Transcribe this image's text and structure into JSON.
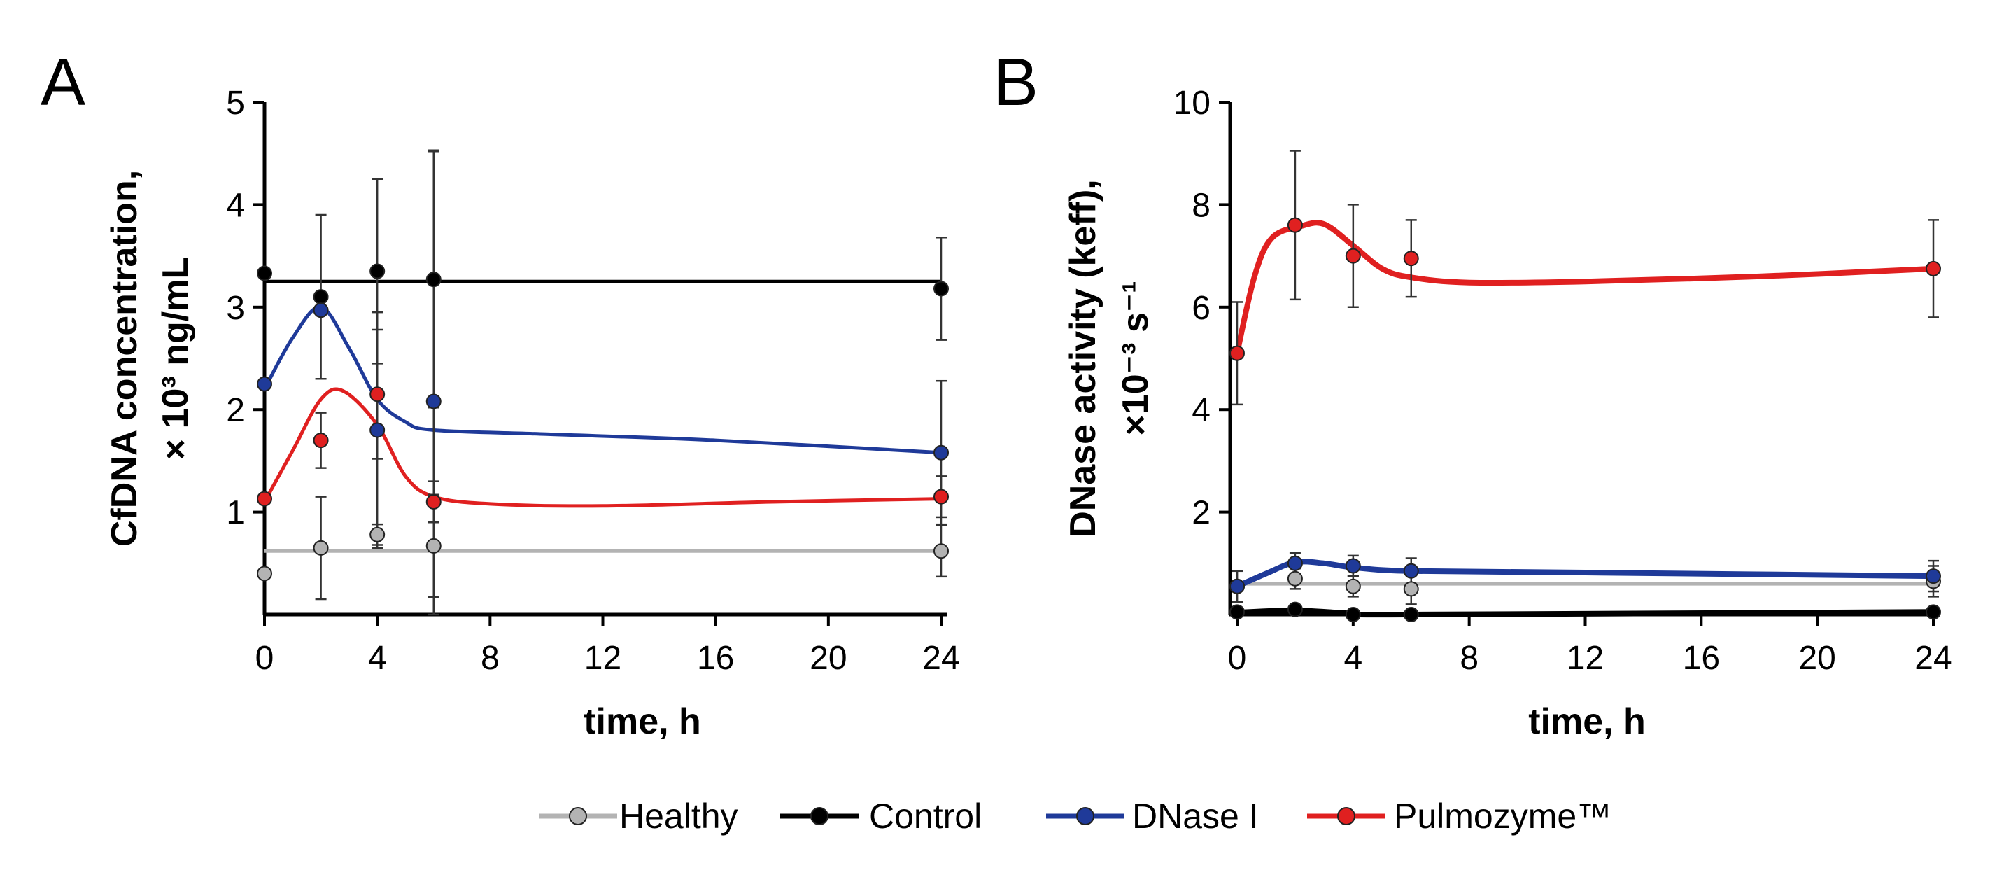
{
  "legend": [
    {
      "key": "healthy",
      "label": "Healthy",
      "line_color": "#b3b3b3",
      "marker_color": "#b3b3b3"
    },
    {
      "key": "control",
      "label": "Control",
      "line_color": "#000000",
      "marker_color": "#000000"
    },
    {
      "key": "dnase",
      "label": "DNase I",
      "line_color": "#1f3a99",
      "marker_color": "#1f3a99"
    },
    {
      "key": "pulmo",
      "label": "Pulmozyme™",
      "line_color": "#e02020",
      "marker_color": "#e02020"
    }
  ],
  "chart_data": [
    {
      "panel": "A",
      "type": "line",
      "title": "",
      "xlabel": "time, h",
      "ylabel_line1": "CfDNA concentration,",
      "ylabel_line2": "× 10³ ng/mL",
      "xlim": [
        0,
        24
      ],
      "ylim": [
        0,
        5
      ],
      "xticks": [
        "0",
        "4",
        "8",
        "12",
        "16",
        "20",
        "24"
      ],
      "yticks": [
        "1",
        "2",
        "3",
        "4",
        "5"
      ],
      "series": [
        {
          "key": "healthy",
          "name": "Healthy",
          "points": [
            {
              "x": 0,
              "y": 0.4,
              "err": 0
            },
            {
              "x": 2,
              "y": 0.65,
              "err": 0.5
            },
            {
              "x": 4,
              "y": 0.78,
              "err": 0.1
            },
            {
              "x": 6,
              "y": 0.67,
              "err": 0.5
            },
            {
              "x": 24,
              "y": 0.62,
              "err": 0.25
            }
          ],
          "curve": [
            [
              0,
              0.62
            ],
            [
              24,
              0.62
            ]
          ]
        },
        {
          "key": "control",
          "name": "Control",
          "points": [
            {
              "x": 0,
              "y": 3.33,
              "err": 0
            },
            {
              "x": 2,
              "y": 3.1,
              "err": 0.8
            },
            {
              "x": 4,
              "y": 3.35,
              "err": 0.9
            },
            {
              "x": 6,
              "y": 3.27,
              "err": 1.25
            },
            {
              "x": 24,
              "y": 3.18,
              "err": 0.5
            }
          ],
          "curve": [
            [
              0,
              3.25
            ],
            [
              24,
              3.25
            ]
          ]
        },
        {
          "key": "dnase",
          "name": "DNase I",
          "points": [
            {
              "x": 0,
              "y": 2.25,
              "err": 0
            },
            {
              "x": 2,
              "y": 2.97,
              "err": 0
            },
            {
              "x": 4,
              "y": 1.8,
              "err": 1.15
            },
            {
              "x": 6,
              "y": 2.08,
              "err": 2.45
            },
            {
              "x": 24,
              "y": 1.58,
              "err": 0.7
            }
          ],
          "curve": [
            [
              0,
              2.2
            ],
            [
              1,
              2.7
            ],
            [
              2,
              3.0
            ],
            [
              3,
              2.6
            ],
            [
              4,
              2.1
            ],
            [
              5,
              1.88
            ],
            [
              6,
              1.8
            ],
            [
              10,
              1.76
            ],
            [
              16,
              1.7
            ],
            [
              24,
              1.58
            ]
          ]
        },
        {
          "key": "pulmo",
          "name": "Pulmozyme™",
          "points": [
            {
              "x": 0,
              "y": 1.13,
              "err": 0
            },
            {
              "x": 2,
              "y": 1.7,
              "err": 0.27
            },
            {
              "x": 4,
              "y": 2.15,
              "err": 0.63
            },
            {
              "x": 6,
              "y": 1.1,
              "err": 0.2
            },
            {
              "x": 24,
              "y": 1.15,
              "err": 0.2
            }
          ],
          "curve": [
            [
              0,
              1.1
            ],
            [
              1,
              1.6
            ],
            [
              2,
              2.1
            ],
            [
              2.8,
              2.18
            ],
            [
              4,
              1.85
            ],
            [
              5,
              1.35
            ],
            [
              6,
              1.15
            ],
            [
              8,
              1.08
            ],
            [
              12,
              1.06
            ],
            [
              18,
              1.1
            ],
            [
              24,
              1.13
            ]
          ]
        }
      ]
    },
    {
      "panel": "B",
      "type": "line",
      "title": "",
      "xlabel": "time, h",
      "ylabel_line1": "DNase activity (keff),",
      "ylabel_line2": "×10⁻³ s⁻¹",
      "xlim": [
        0,
        24
      ],
      "ylim": [
        0,
        10
      ],
      "xticks": [
        "0",
        "4",
        "8",
        "12",
        "16",
        "20",
        "24"
      ],
      "yticks": [
        "2",
        "4",
        "6",
        "8",
        "10"
      ],
      "series": [
        {
          "key": "healthy",
          "name": "Healthy",
          "points": [
            {
              "x": 0,
              "y": 0.55,
              "err": 0.3
            },
            {
              "x": 2,
              "y": 0.7,
              "err": 0.2
            },
            {
              "x": 4,
              "y": 0.55,
              "err": 0.2
            },
            {
              "x": 6,
              "y": 0.5,
              "err": 0.3
            },
            {
              "x": 24,
              "y": 0.65,
              "err": 0.3
            }
          ],
          "curve": [
            [
              0,
              0.6
            ],
            [
              24,
              0.6
            ]
          ]
        },
        {
          "key": "control",
          "name": "Control",
          "points": [
            {
              "x": 0,
              "y": 0.05,
              "err": 0
            },
            {
              "x": 2,
              "y": 0.1,
              "err": 0
            },
            {
              "x": 4,
              "y": 0,
              "err": 0
            },
            {
              "x": 6,
              "y": 0,
              "err": 0
            },
            {
              "x": 24,
              "y": 0.05,
              "err": 0
            }
          ],
          "curve": [
            [
              0,
              0.04
            ],
            [
              2,
              0.08
            ],
            [
              4,
              0.02
            ],
            [
              6,
              0.0
            ],
            [
              24,
              0.05
            ]
          ]
        },
        {
          "key": "dnase",
          "name": "DNase I",
          "points": [
            {
              "x": 0,
              "y": 0.55,
              "err": 0.3
            },
            {
              "x": 2,
              "y": 1.0,
              "err": 0.2
            },
            {
              "x": 4,
              "y": 0.95,
              "err": 0.2
            },
            {
              "x": 6,
              "y": 0.85,
              "err": 0.25
            },
            {
              "x": 24,
              "y": 0.75,
              "err": 0.3
            }
          ],
          "curve": [
            [
              0,
              0.55
            ],
            [
              1,
              0.8
            ],
            [
              2,
              1.02
            ],
            [
              3,
              1.0
            ],
            [
              4,
              0.92
            ],
            [
              6,
              0.85
            ],
            [
              12,
              0.82
            ],
            [
              24,
              0.75
            ]
          ]
        },
        {
          "key": "pulmo",
          "name": "Pulmozyme™",
          "points": [
            {
              "x": 0,
              "y": 5.1,
              "err": 1.0
            },
            {
              "x": 2,
              "y": 7.6,
              "err": 1.45
            },
            {
              "x": 4,
              "y": 7.0,
              "err": 1.0
            },
            {
              "x": 6,
              "y": 6.95,
              "err": 0.75
            },
            {
              "x": 24,
              "y": 6.75,
              "err": 0.95
            }
          ],
          "curve": [
            [
              0,
              5.1
            ],
            [
              0.6,
              6.6
            ],
            [
              1.2,
              7.35
            ],
            [
              2.2,
              7.58
            ],
            [
              3,
              7.62
            ],
            [
              4,
              7.2
            ],
            [
              5,
              6.75
            ],
            [
              6,
              6.58
            ],
            [
              8,
              6.48
            ],
            [
              12,
              6.5
            ],
            [
              18,
              6.6
            ],
            [
              24,
              6.75
            ]
          ]
        }
      ]
    }
  ]
}
